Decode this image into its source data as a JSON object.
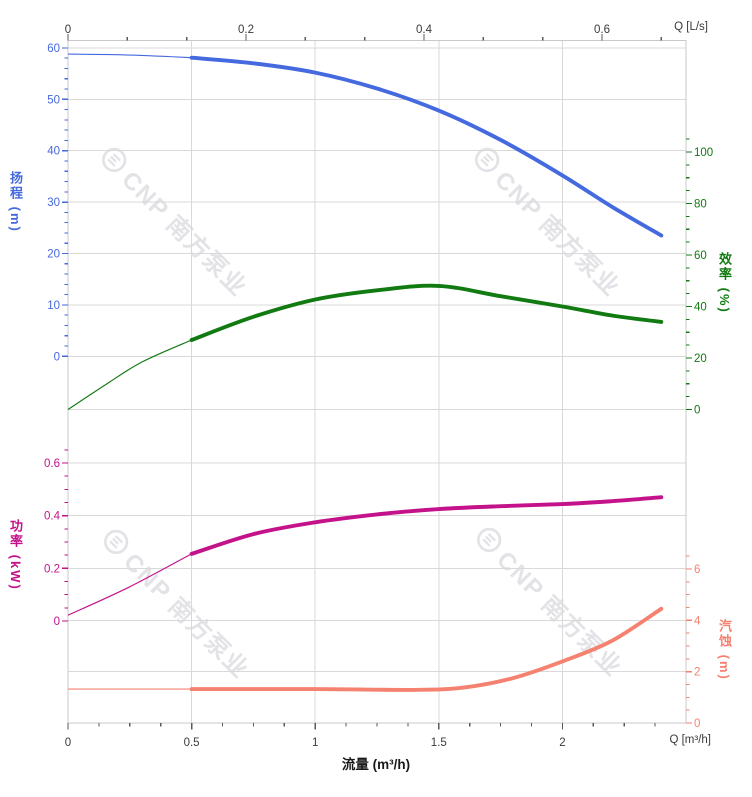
{
  "colors": {
    "head": "#4569DE",
    "efficiency": "#117A11",
    "power": "#C4138A",
    "npsh": "#F58270",
    "grid": "#D9D9D9",
    "border": "#C9C9C9",
    "xtick_text": "#3A3A3A",
    "xtick_mark": "#5A5A5A",
    "watermark": "#E3E3E7"
  },
  "watermark": {
    "logo_icon": "cnp-circle-logo",
    "text": "CNP 南方泵业"
  },
  "axes": {
    "top": {
      "unit_label": "Q [L/s]",
      "ticks": [
        {
          "v": 0,
          "label": "0"
        },
        {
          "v": 0.2,
          "label": "0.2"
        },
        {
          "v": 0.4,
          "label": "0.4"
        },
        {
          "v": 0.6,
          "label": "0.6"
        }
      ]
    },
    "bottom": {
      "unit_label": "Q [m³/h]",
      "title": "流量 (m³/h)",
      "ticks": [
        {
          "v": 0,
          "label": "0"
        },
        {
          "v": 0.5,
          "label": "0.5"
        },
        {
          "v": 1,
          "label": "1"
        },
        {
          "v": 1.5,
          "label": "1.5"
        },
        {
          "v": 2,
          "label": "2"
        }
      ]
    },
    "head": {
      "title": "扬程 (m)",
      "ticks": [
        {
          "v": 0,
          "label": "0"
        },
        {
          "v": 10,
          "label": "10"
        },
        {
          "v": 20,
          "label": "20"
        },
        {
          "v": 30,
          "label": "30"
        },
        {
          "v": 40,
          "label": "40"
        },
        {
          "v": 50,
          "label": "50"
        },
        {
          "v": 60,
          "label": "60"
        }
      ]
    },
    "efficiency": {
      "title": "效率 (%)",
      "ticks": [
        {
          "v": 0,
          "label": "0"
        },
        {
          "v": 20,
          "label": "20"
        },
        {
          "v": 40,
          "label": "40"
        },
        {
          "v": 60,
          "label": "60"
        },
        {
          "v": 80,
          "label": "80"
        },
        {
          "v": 100,
          "label": "100"
        }
      ]
    },
    "power": {
      "title": "功率 (kW)",
      "ticks": [
        {
          "v": 0,
          "label": "0"
        },
        {
          "v": 0.2,
          "label": "0.2"
        },
        {
          "v": 0.4,
          "label": "0.4"
        },
        {
          "v": 0.6,
          "label": "0.6"
        }
      ]
    },
    "npsh": {
      "title": "汽蚀 (m)",
      "ticks": [
        {
          "v": 0,
          "label": "0"
        },
        {
          "v": 2,
          "label": "2"
        },
        {
          "v": 4,
          "label": "4"
        },
        {
          "v": 6,
          "label": "6"
        }
      ]
    }
  },
  "chart_data": {
    "type": "line",
    "title": "",
    "x_axis": {
      "bottom_unit": "m³/h",
      "top_unit": "L/s",
      "bottom_range": [
        0,
        2.5
      ],
      "top_range": [
        0,
        0.695
      ],
      "note": "curves drawn thin below rated range, thick from 0.5 m³/h to 2.4 m³/h"
    },
    "rated_range_start": 0.5,
    "series": [
      {
        "name": "扬程",
        "unit": "m",
        "axis_range": [
          0,
          60
        ],
        "color": "#4569DE",
        "points": [
          [
            0,
            58.8
          ],
          [
            0.25,
            58.6
          ],
          [
            0.5,
            58.1
          ],
          [
            0.75,
            57.0
          ],
          [
            1,
            55.2
          ],
          [
            1.25,
            52.1
          ],
          [
            1.5,
            47.8
          ],
          [
            1.75,
            42.1
          ],
          [
            2,
            35.2
          ],
          [
            2.2,
            29.1
          ],
          [
            2.4,
            23.5
          ]
        ]
      },
      {
        "name": "效率",
        "unit": "%",
        "axis_range": [
          0,
          100
        ],
        "color": "#117A11",
        "points": [
          [
            0,
            0
          ],
          [
            0.15,
            9.5
          ],
          [
            0.3,
            18.5
          ],
          [
            0.5,
            27
          ],
          [
            0.75,
            36
          ],
          [
            1,
            42.7
          ],
          [
            1.25,
            46.3
          ],
          [
            1.5,
            48
          ],
          [
            1.75,
            44
          ],
          [
            2,
            40
          ],
          [
            2.2,
            36.5
          ],
          [
            2.4,
            34
          ]
        ]
      },
      {
        "name": "功率",
        "unit": "kW",
        "axis_range": [
          0,
          0.6
        ],
        "color": "#C4138A",
        "points": [
          [
            0,
            0.022
          ],
          [
            0.25,
            0.13
          ],
          [
            0.5,
            0.255
          ],
          [
            0.75,
            0.33
          ],
          [
            1,
            0.375
          ],
          [
            1.25,
            0.405
          ],
          [
            1.5,
            0.425
          ],
          [
            1.75,
            0.436
          ],
          [
            2,
            0.444
          ],
          [
            2.2,
            0.455
          ],
          [
            2.4,
            0.47
          ]
        ]
      },
      {
        "name": "汽蚀",
        "unit": "m",
        "axis_range": [
          0,
          6
        ],
        "color": "#F58270",
        "points": [
          [
            0,
            1.32
          ],
          [
            0.5,
            1.32
          ],
          [
            1,
            1.32
          ],
          [
            1.4,
            1.29
          ],
          [
            1.6,
            1.38
          ],
          [
            1.8,
            1.75
          ],
          [
            2,
            2.4
          ],
          [
            2.2,
            3.2
          ],
          [
            2.4,
            4.45
          ]
        ]
      }
    ]
  }
}
